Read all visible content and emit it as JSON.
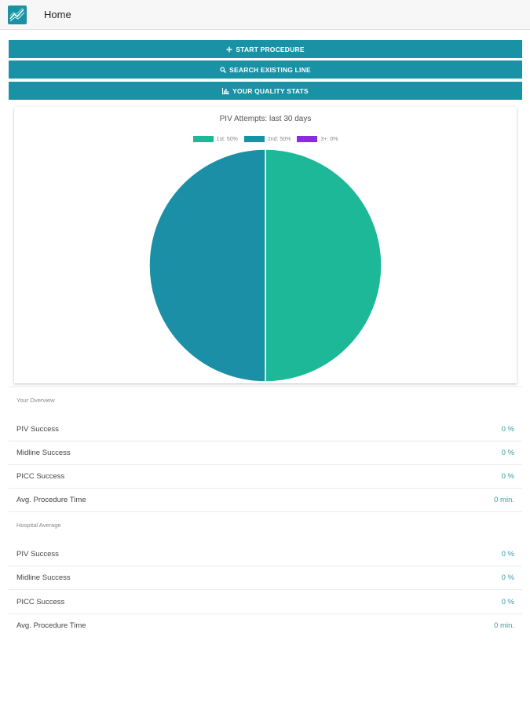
{
  "header": {
    "title": "Home",
    "logo_icon": "chart-logo-icon"
  },
  "actions": {
    "start": {
      "label": "START PROCEDURE",
      "icon": "plus-icon"
    },
    "search": {
      "label": "SEARCH EXISTING LINE",
      "icon": "search-icon"
    },
    "stats": {
      "label": "YOUR QUALITY STATS",
      "icon": "bar-chart-icon"
    }
  },
  "colors": {
    "accent": "#1a92a6",
    "first": "#1cb898",
    "second": "#1a8fa5",
    "third": "#8a2be2"
  },
  "chart_data": {
    "type": "pie",
    "title": "PIV Attempts: last 30 days",
    "legend_position": "top",
    "categories": [
      "1st: 50%",
      "2nd: 50%",
      "3+: 0%"
    ],
    "values": [
      50,
      50,
      0
    ],
    "colors": [
      "#1cb898",
      "#1a8fa5",
      "#8a2be2"
    ]
  },
  "overview": {
    "title": "Your Overview",
    "rows": [
      {
        "label": "PIV Success",
        "value": "0 %"
      },
      {
        "label": "Midline Success",
        "value": "0 %"
      },
      {
        "label": "PICC Success",
        "value": "0 %"
      },
      {
        "label": "Avg. Procedure Time",
        "value": "0 min."
      }
    ]
  },
  "hospital": {
    "title": "Hospital Average",
    "rows": [
      {
        "label": "PIV Success",
        "value": "0 %"
      },
      {
        "label": "Midline Success",
        "value": "0 %"
      },
      {
        "label": "PICC Success",
        "value": "0 %"
      },
      {
        "label": "Avg. Procedure Time",
        "value": "0 min."
      }
    ]
  }
}
